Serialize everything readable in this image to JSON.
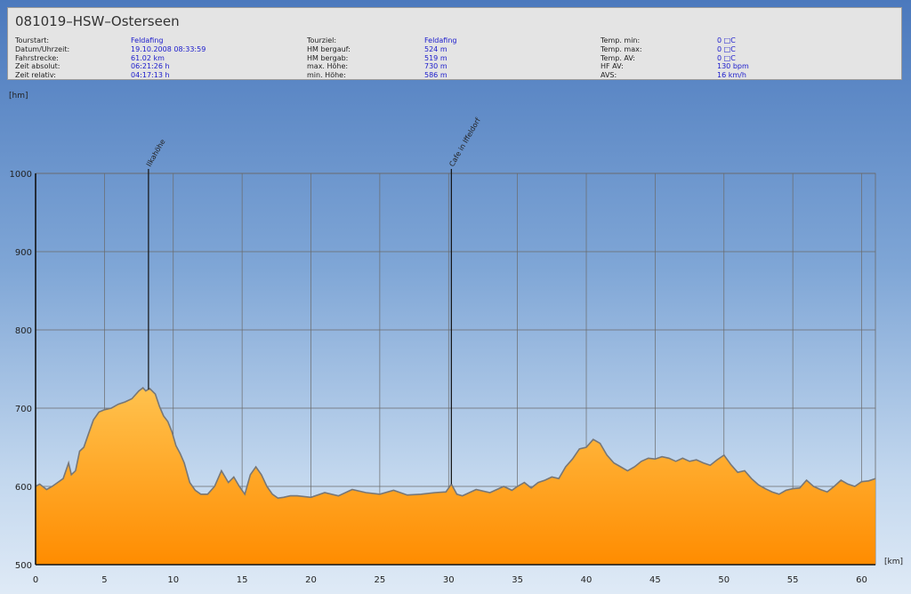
{
  "header": {
    "title": "081019–HSW–Osterseen",
    "columns": [
      {
        "rows": [
          {
            "label": "Tourstart:",
            "value": "Feldafing"
          },
          {
            "label": "Datum/Uhrzeit:",
            "value": "19.10.2008 08:33:59"
          },
          {
            "label": "Fahrstrecke:",
            "value": "61.02 km"
          },
          {
            "label": "Zeit absolut:",
            "value": "06:21:26 h"
          },
          {
            "label": "Zeit relativ:",
            "value": "04:17:13 h"
          }
        ]
      },
      {
        "rows": [
          {
            "label": "Tourziel:",
            "value": "Feldafing"
          },
          {
            "label": "HM bergauf:",
            "value": "524 m"
          },
          {
            "label": "HM bergab:",
            "value": "519 m"
          },
          {
            "label": "max. Höhe:",
            "value": "730 m"
          },
          {
            "label": "min. Höhe:",
            "value": "586 m"
          }
        ]
      },
      {
        "rows": [
          {
            "label": "Temp. min:",
            "value": "0 □C"
          },
          {
            "label": "Temp. max:",
            "value": "0 □C"
          },
          {
            "label": "Temp. AV:",
            "value": "0 □C"
          },
          {
            "label": "HF AV:",
            "value": "130 bpm"
          },
          {
            "label": "AVS:",
            "value": "16 km/h"
          }
        ]
      }
    ]
  },
  "chart_data": {
    "type": "area",
    "xlabel": "[km]",
    "ylabel": "[hm]",
    "xlim": [
      0,
      61
    ],
    "ylim": [
      500,
      1000
    ],
    "x_ticks": [
      0,
      5,
      10,
      15,
      20,
      25,
      30,
      35,
      40,
      45,
      50,
      55,
      60
    ],
    "y_ticks": [
      500,
      600,
      700,
      800,
      900,
      1000
    ],
    "grid": true,
    "fill_colors": {
      "top": "#ffc24e",
      "bottom": "#ff8c00",
      "line": "#777777"
    },
    "markers": [
      {
        "x": 8.2,
        "label": "Ilkahöhe"
      },
      {
        "x": 30.2,
        "label": "Cafe in Iffeldorf"
      }
    ],
    "series": [
      {
        "x": [
          0,
          0.3,
          0.8,
          1.2,
          1.6,
          2.0,
          2.4,
          2.6,
          2.9,
          3.2,
          3.5,
          3.8,
          4.2,
          4.6,
          5.0,
          5.5,
          6.0,
          6.5,
          7.0,
          7.5,
          7.8,
          8.0,
          8.3,
          8.7,
          9.0,
          9.3,
          9.6,
          9.9,
          10.2,
          10.5,
          10.8,
          11.2,
          11.6,
          12.0,
          12.5,
          13.0,
          13.5,
          14.0,
          14.4,
          14.8,
          15.2,
          15.6,
          16.0,
          16.4,
          16.8,
          17.2,
          17.6,
          18.0,
          18.5,
          19.0,
          20.0,
          21.0,
          22.0,
          23.0,
          24.0,
          25.0,
          26.0,
          27.0,
          28.0,
          29.0,
          29.8,
          30.2,
          30.6,
          31.0,
          32.0,
          33.0,
          34.0,
          34.6,
          35.0,
          35.5,
          36.0,
          36.5,
          37.0,
          37.5,
          38.0,
          38.5,
          39.0,
          39.5,
          40.0,
          40.5,
          41.0,
          41.5,
          42.0,
          42.5,
          43.0,
          43.5,
          44.0,
          44.5,
          45.0,
          45.5,
          46.0,
          46.5,
          47.0,
          47.5,
          48.0,
          48.5,
          49.0,
          49.5,
          50.0,
          50.5,
          51.0,
          51.5,
          52.0,
          52.5,
          53.0,
          53.5,
          54.0,
          54.5,
          55.0,
          55.5,
          56.0,
          56.5,
          57.0,
          57.5,
          58.0,
          58.5,
          59.0,
          59.5,
          60.0,
          60.5,
          61.0
        ],
        "y": [
          600,
          603,
          596,
          600,
          605,
          610,
          630,
          615,
          620,
          645,
          650,
          665,
          685,
          695,
          698,
          700,
          705,
          708,
          712,
          722,
          726,
          722,
          725,
          718,
          702,
          690,
          683,
          670,
          652,
          642,
          630,
          605,
          595,
          590,
          590,
          600,
          620,
          605,
          612,
          600,
          590,
          615,
          625,
          615,
          600,
          590,
          585,
          586,
          588,
          588,
          586,
          592,
          588,
          596,
          592,
          590,
          595,
          589,
          590,
          592,
          593,
          603,
          590,
          588,
          596,
          592,
          600,
          595,
          600,
          605,
          598,
          605,
          608,
          612,
          610,
          625,
          635,
          648,
          650,
          660,
          655,
          640,
          630,
          625,
          620,
          625,
          632,
          636,
          635,
          638,
          636,
          632,
          636,
          632,
          634,
          630,
          627,
          634,
          640,
          628,
          618,
          620,
          610,
          602,
          597,
          593,
          590,
          595,
          597,
          598,
          608,
          600,
          596,
          593,
          600,
          608,
          603,
          600,
          606,
          607,
          610
        ]
      }
    ]
  }
}
